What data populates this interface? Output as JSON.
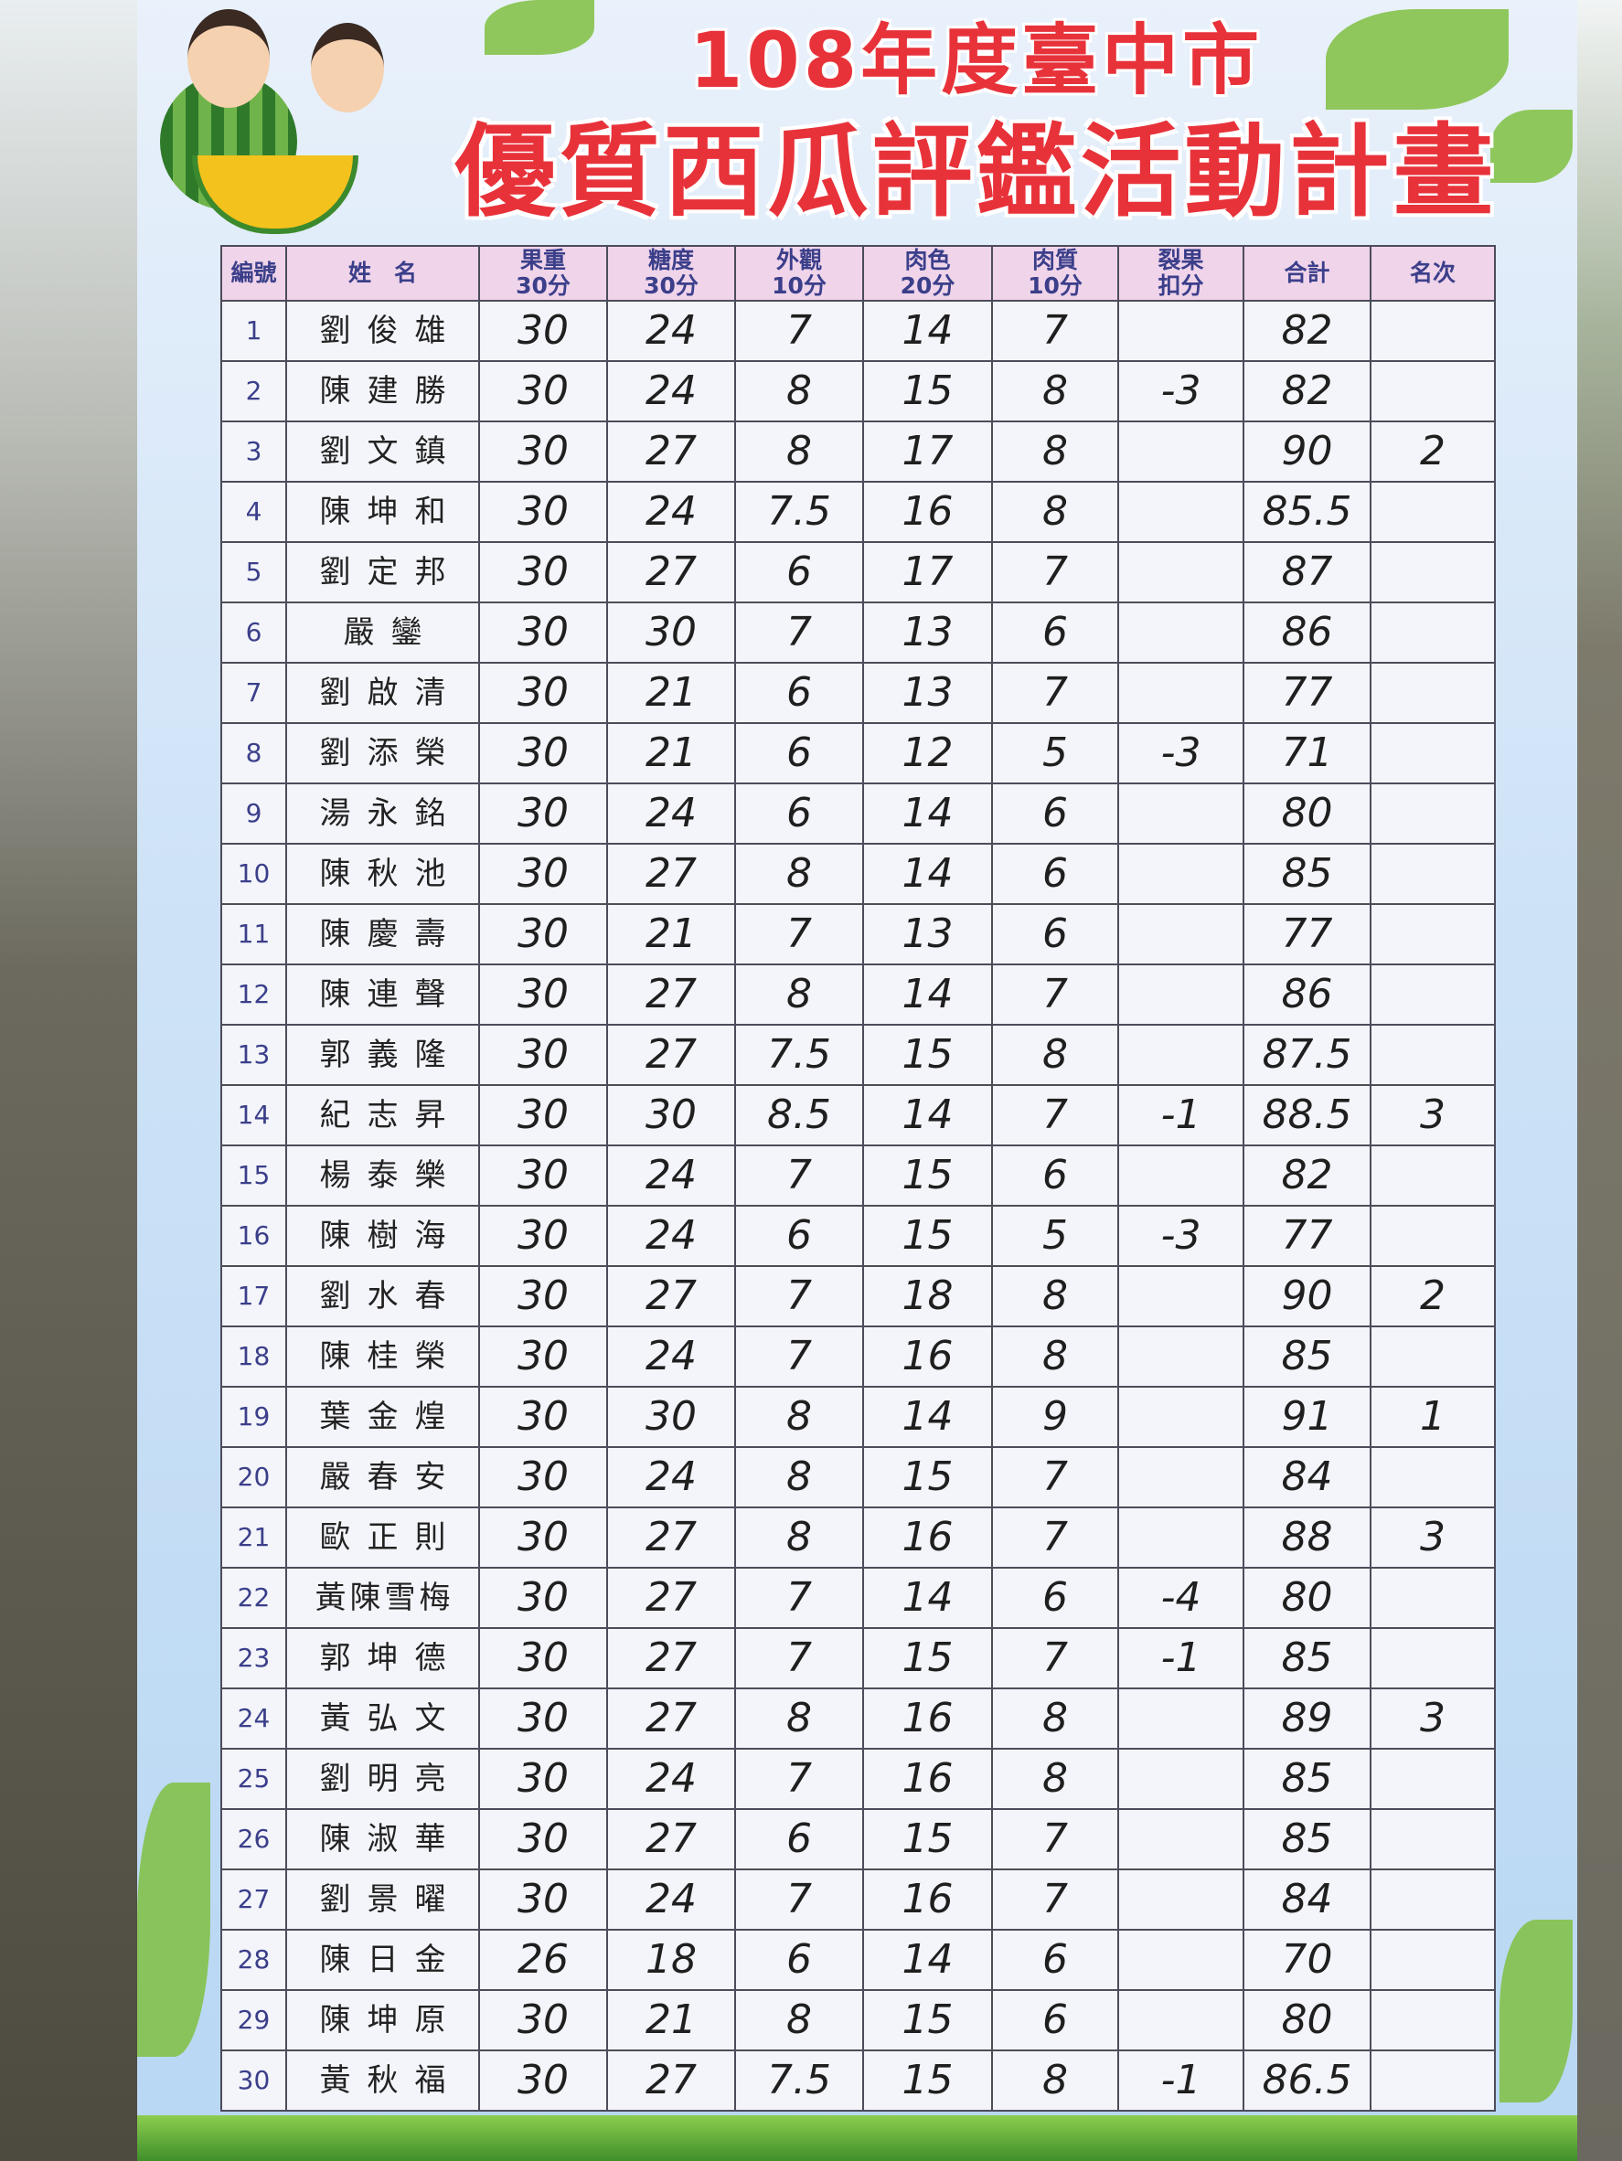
{
  "board": {
    "title_line1": "108年度臺中市",
    "title_line2": "優質西瓜評鑑活動計畫",
    "colors": {
      "title": "#e8323a",
      "header_bg": "#f0d4ea",
      "header_text": "#3b3f8a",
      "board_bg": "#cfe3f7"
    }
  },
  "table": {
    "headers": [
      "編號",
      "姓　名",
      "果重\n30分",
      "糖度\n30分",
      "外觀\n10分",
      "肉色\n20分",
      "肉質\n10分",
      "裂果\n扣分",
      "合計",
      "名次"
    ],
    "rows": [
      [
        "1",
        "劉俊雄",
        "30",
        "24",
        "7",
        "14",
        "7",
        "",
        "82",
        ""
      ],
      [
        "2",
        "陳建勝",
        "30",
        "24",
        "8",
        "15",
        "8",
        "-3",
        "82",
        ""
      ],
      [
        "3",
        "劉文鎮",
        "30",
        "27",
        "8",
        "17",
        "8",
        "",
        "90",
        "2"
      ],
      [
        "4",
        "陳坤和",
        "30",
        "24",
        "7.5",
        "16",
        "8",
        "",
        "85.5",
        ""
      ],
      [
        "5",
        "劉定邦",
        "30",
        "27",
        "6",
        "17",
        "7",
        "",
        "87",
        ""
      ],
      [
        "6",
        "嚴鑾",
        "30",
        "30",
        "7",
        "13",
        "6",
        "",
        "86",
        ""
      ],
      [
        "7",
        "劉啟清",
        "30",
        "21",
        "6",
        "13",
        "7",
        "",
        "77",
        ""
      ],
      [
        "8",
        "劉添榮",
        "30",
        "21",
        "6",
        "12",
        "5",
        "-3",
        "71",
        ""
      ],
      [
        "9",
        "湯永銘",
        "30",
        "24",
        "6",
        "14",
        "6",
        "",
        "80",
        ""
      ],
      [
        "10",
        "陳秋池",
        "30",
        "27",
        "8",
        "14",
        "6",
        "",
        "85",
        ""
      ],
      [
        "11",
        "陳慶壽",
        "30",
        "21",
        "7",
        "13",
        "6",
        "",
        "77",
        ""
      ],
      [
        "12",
        "陳連聲",
        "30",
        "27",
        "8",
        "14",
        "7",
        "",
        "86",
        ""
      ],
      [
        "13",
        "郭義隆",
        "30",
        "27",
        "7.5",
        "15",
        "8",
        "",
        "87.5",
        ""
      ],
      [
        "14",
        "紀志昇",
        "30",
        "30",
        "8.5",
        "14",
        "7",
        "-1",
        "88.5",
        "3"
      ],
      [
        "15",
        "楊泰樂",
        "30",
        "24",
        "7",
        "15",
        "6",
        "",
        "82",
        ""
      ],
      [
        "16",
        "陳樹海",
        "30",
        "24",
        "6",
        "15",
        "5",
        "-3",
        "77",
        ""
      ],
      [
        "17",
        "劉水春",
        "30",
        "27",
        "7",
        "18",
        "8",
        "",
        "90",
        "2"
      ],
      [
        "18",
        "陳桂榮",
        "30",
        "24",
        "7",
        "16",
        "8",
        "",
        "85",
        ""
      ],
      [
        "19",
        "葉金煌",
        "30",
        "30",
        "8",
        "14",
        "9",
        "",
        "91",
        "1"
      ],
      [
        "20",
        "嚴春安",
        "30",
        "24",
        "8",
        "15",
        "7",
        "",
        "84",
        ""
      ],
      [
        "21",
        "歐正則",
        "30",
        "27",
        "8",
        "16",
        "7",
        "",
        "88",
        "3"
      ],
      [
        "22",
        "黃陳雪梅",
        "30",
        "27",
        "7",
        "14",
        "6",
        "-4",
        "80",
        ""
      ],
      [
        "23",
        "郭坤德",
        "30",
        "27",
        "7",
        "15",
        "7",
        "-1",
        "85",
        ""
      ],
      [
        "24",
        "黃弘文",
        "30",
        "27",
        "8",
        "16",
        "8",
        "",
        "89",
        "3"
      ],
      [
        "25",
        "劉明亮",
        "30",
        "24",
        "7",
        "16",
        "8",
        "",
        "85",
        ""
      ],
      [
        "26",
        "陳淑華",
        "30",
        "27",
        "6",
        "15",
        "7",
        "",
        "85",
        ""
      ],
      [
        "27",
        "劉景曜",
        "30",
        "24",
        "7",
        "16",
        "7",
        "",
        "84",
        ""
      ],
      [
        "28",
        "陳日金",
        "26",
        "18",
        "6",
        "14",
        "6",
        "",
        "70",
        ""
      ],
      [
        "29",
        "陳坤原",
        "30",
        "21",
        "8",
        "15",
        "6",
        "",
        "80",
        ""
      ],
      [
        "30",
        "黃秋福",
        "30",
        "27",
        "7.5",
        "15",
        "8",
        "-1",
        "86.5",
        ""
      ]
    ]
  }
}
